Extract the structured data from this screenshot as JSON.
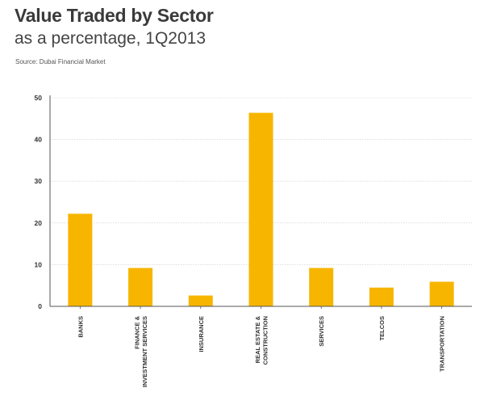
{
  "header": {
    "title": "Value Traded by Sector",
    "subtitle": "as a percentage, 1Q2013",
    "source": "Source: Dubai Financial Market"
  },
  "colors": {
    "bar": "#F7B500",
    "grid": "#cccccc",
    "axis": "#555555"
  },
  "chart_data": {
    "type": "bar",
    "title": "Value Traded by Sector",
    "subtitle": "as a percentage, 1Q2013",
    "xlabel": "",
    "ylabel": "",
    "ylim": [
      0,
      50
    ],
    "yticks": [
      0,
      10,
      20,
      30,
      40,
      50
    ],
    "grid": true,
    "categories": [
      "BANKS",
      "FINANCE & INVESTMENT SERVICES",
      "INSURANCE",
      "REAL ESTATE & CONSTRUCTION",
      "SERVICES",
      "TELCOS",
      "TRANSPORTATION"
    ],
    "category_label_lines": [
      [
        "BANKS"
      ],
      [
        "FINANCE &",
        "INVESTMENT SERVICES"
      ],
      [
        "INSURANCE"
      ],
      [
        "REAL ESTATE &",
        "CONSTRUCTION"
      ],
      [
        "SERVICES"
      ],
      [
        "TELCOS"
      ],
      [
        "TRANSPORTATION"
      ]
    ],
    "values": [
      22.2,
      9.2,
      2.6,
      46.4,
      9.2,
      4.5,
      5.9
    ]
  }
}
